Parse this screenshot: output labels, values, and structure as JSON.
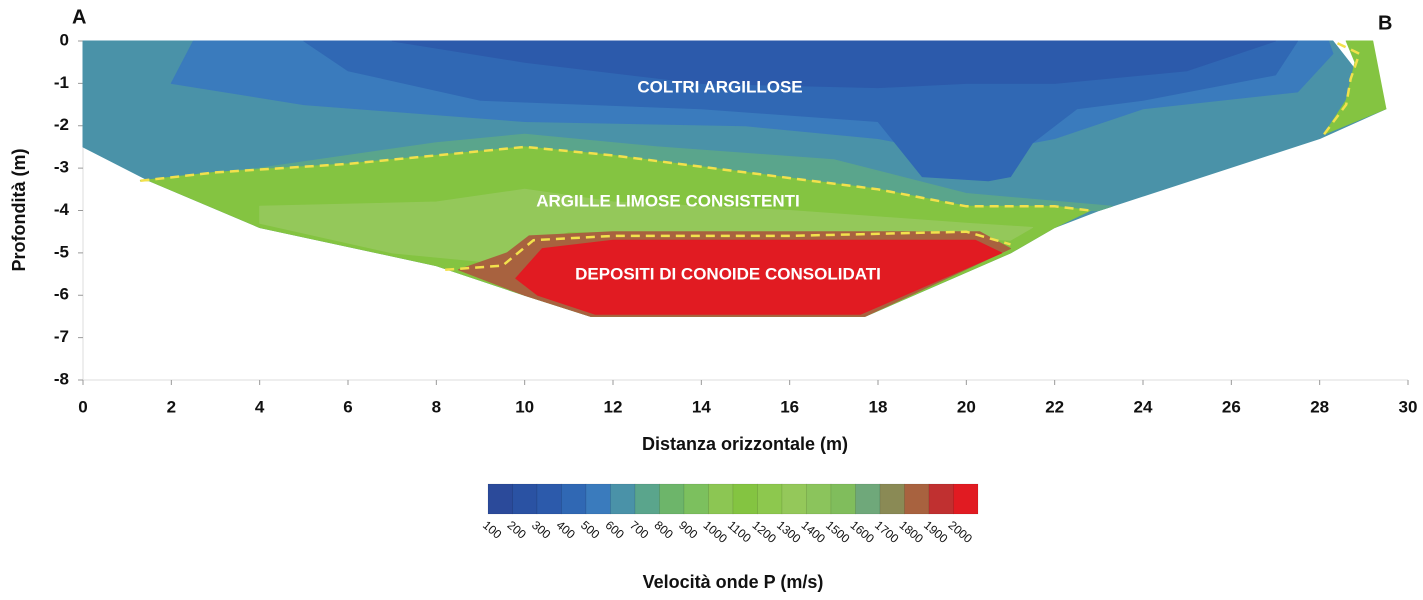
{
  "chart_data": {
    "type": "contour",
    "left_label": "A",
    "right_label": "B",
    "xlabel": "Distanza orizzontale (m)",
    "ylabel": "Profondità (m)",
    "xlim": [
      0,
      30
    ],
    "ylim": [
      -8,
      0
    ],
    "xticks": [
      0,
      2,
      4,
      6,
      8,
      10,
      12,
      14,
      16,
      18,
      20,
      22,
      24,
      26,
      28,
      30
    ],
    "yticks": [
      0,
      -1,
      -2,
      -3,
      -4,
      -5,
      -6,
      -7,
      -8
    ],
    "annotations": [
      "COLTRI ARGILLOSE",
      "ARGILLE LIMOSE CONSISTENTI",
      "DEPOSITI DI CONOIDE CONSOLIDATI"
    ],
    "colorbar": {
      "label": "Velocità onde P (m/s)",
      "levels": [
        100,
        200,
        300,
        400,
        500,
        600,
        700,
        800,
        900,
        1000,
        1100,
        1200,
        1300,
        1400,
        1500,
        1600,
        1700,
        1800,
        1900,
        2000
      ],
      "colors": [
        "#2b4a9a",
        "#2a52a3",
        "#2c5aab",
        "#3068b4",
        "#3a7bbd",
        "#4a92a8",
        "#5aa58c",
        "#6db56a",
        "#7cc05e",
        "#8cc653",
        "#84c441",
        "#8dc84e",
        "#94c85a",
        "#8bc45c",
        "#80bd5c",
        "#6fa87a",
        "#8a8a55",
        "#a8623f",
        "#c03030",
        "#e11b22"
      ]
    },
    "regions": [
      {
        "value": 600,
        "x": [
          0,
          28.3,
          29.5,
          28,
          23,
          22,
          21,
          17.7,
          11.5,
          10,
          8,
          4,
          1.5,
          0
        ],
        "y": [
          0,
          0,
          -1.6,
          -2.3,
          -4.0,
          -4.4,
          -5,
          -6.5,
          -6.5,
          -6,
          -5.3,
          -4.4,
          -3.3,
          -2.5
        ]
      },
      {
        "value": 500,
        "x": [
          2.5,
          28.2,
          28.3,
          27.5,
          24,
          22,
          20,
          18,
          15,
          10,
          5,
          2
        ],
        "y": [
          0,
          0,
          -0.3,
          -1.2,
          -1.6,
          -2.3,
          -2.7,
          -2.3,
          -2.0,
          -1.9,
          -1.5,
          -1.0
        ]
      },
      {
        "value": 400,
        "x": [
          5,
          27.5,
          27,
          24,
          22.5,
          21.5,
          21,
          20.5,
          19,
          18,
          14,
          9,
          6
        ],
        "y": [
          0,
          0,
          -0.8,
          -1.4,
          -1.6,
          -2.4,
          -3.2,
          -3.3,
          -3.2,
          -1.9,
          -1.6,
          -1.4,
          -0.7
        ]
      },
      {
        "value": 300,
        "x": [
          7,
          27,
          25,
          22,
          20,
          18,
          14,
          10
        ],
        "y": [
          0,
          0,
          -0.7,
          -1.0,
          -1.0,
          -1.1,
          -1.0,
          -0.5
        ]
      },
      {
        "value": 700,
        "x": [
          1.3,
          4,
          8,
          10,
          13,
          17,
          20,
          23.3,
          23,
          22.8,
          20,
          18,
          15,
          12,
          10,
          6,
          3
        ],
        "y": [
          -3.3,
          -3.0,
          -2.4,
          -2.2,
          -2.5,
          -2.8,
          -3.6,
          -3.9,
          -4.0,
          -4.0,
          -3.9,
          -3.5,
          -3.1,
          -2.7,
          -2.5,
          -2.9,
          -3.1
        ]
      },
      {
        "value": 1100,
        "x": [
          1.3,
          3,
          6,
          8,
          10,
          12,
          15,
          18,
          20,
          22,
          22.8,
          22,
          21,
          17.7,
          11.5,
          10,
          8,
          4,
          1.5
        ],
        "y": [
          -3.3,
          -3.1,
          -2.9,
          -2.7,
          -2.5,
          -2.7,
          -3.1,
          -3.5,
          -3.9,
          -3.9,
          -4.0,
          -4.4,
          -5,
          -6.5,
          -6.5,
          -6,
          -5.3,
          -4.4,
          -3.3
        ]
      },
      {
        "value": 1300,
        "x": [
          4,
          8,
          10,
          12,
          16,
          20,
          21.5,
          21,
          17,
          11,
          9,
          7,
          4
        ],
        "y": [
          -3.9,
          -3.8,
          -3.5,
          -3.8,
          -4.0,
          -4.3,
          -4.4,
          -4.7,
          -4.5,
          -4.5,
          -5.2,
          -5.0,
          -4.3
        ]
      },
      {
        "value": 1800,
        "x": [
          8.5,
          9.6,
          10.1,
          12,
          20.3,
          21,
          17.7,
          11.5,
          10,
          8.5
        ],
        "y": [
          -5.4,
          -5.0,
          -4.6,
          -4.5,
          -4.5,
          -4.9,
          -6.5,
          -6.5,
          -6,
          -5.4
        ]
      },
      {
        "value": 2000,
        "x": [
          9.8,
          10.4,
          12,
          20.2,
          20.8,
          17.6,
          11.6,
          10.3
        ],
        "y": [
          -5.6,
          -4.9,
          -4.7,
          -4.7,
          -5.0,
          -6.45,
          -6.45,
          -6.0
        ]
      },
      {
        "value": 1100,
        "x": [
          28.6,
          29.2,
          29.5,
          28.1,
          28.6,
          28.8
        ],
        "y": [
          0,
          0,
          -1.6,
          -2.2,
          -1.4,
          -0.5
        ]
      }
    ],
    "boundaries": [
      {
        "x": [
          1.3,
          3,
          6,
          8,
          10,
          12,
          15,
          18,
          20,
          22,
          22.8
        ],
        "y": [
          -3.3,
          -3.1,
          -2.9,
          -2.7,
          -2.5,
          -2.7,
          -3.1,
          -3.5,
          -3.9,
          -3.9,
          -4.0
        ]
      },
      {
        "x": [
          8.2,
          9.5,
          10.2,
          12,
          16,
          20,
          21
        ],
        "y": [
          -5.4,
          -5.3,
          -4.7,
          -4.6,
          -4.6,
          -4.5,
          -4.8
        ]
      },
      {
        "x": [
          28.1,
          28.6,
          28.7,
          28.9,
          28.3
        ],
        "y": [
          -2.2,
          -1.5,
          -0.9,
          -0.3,
          0
        ]
      }
    ],
    "boundary_color": "#f2e14c"
  }
}
